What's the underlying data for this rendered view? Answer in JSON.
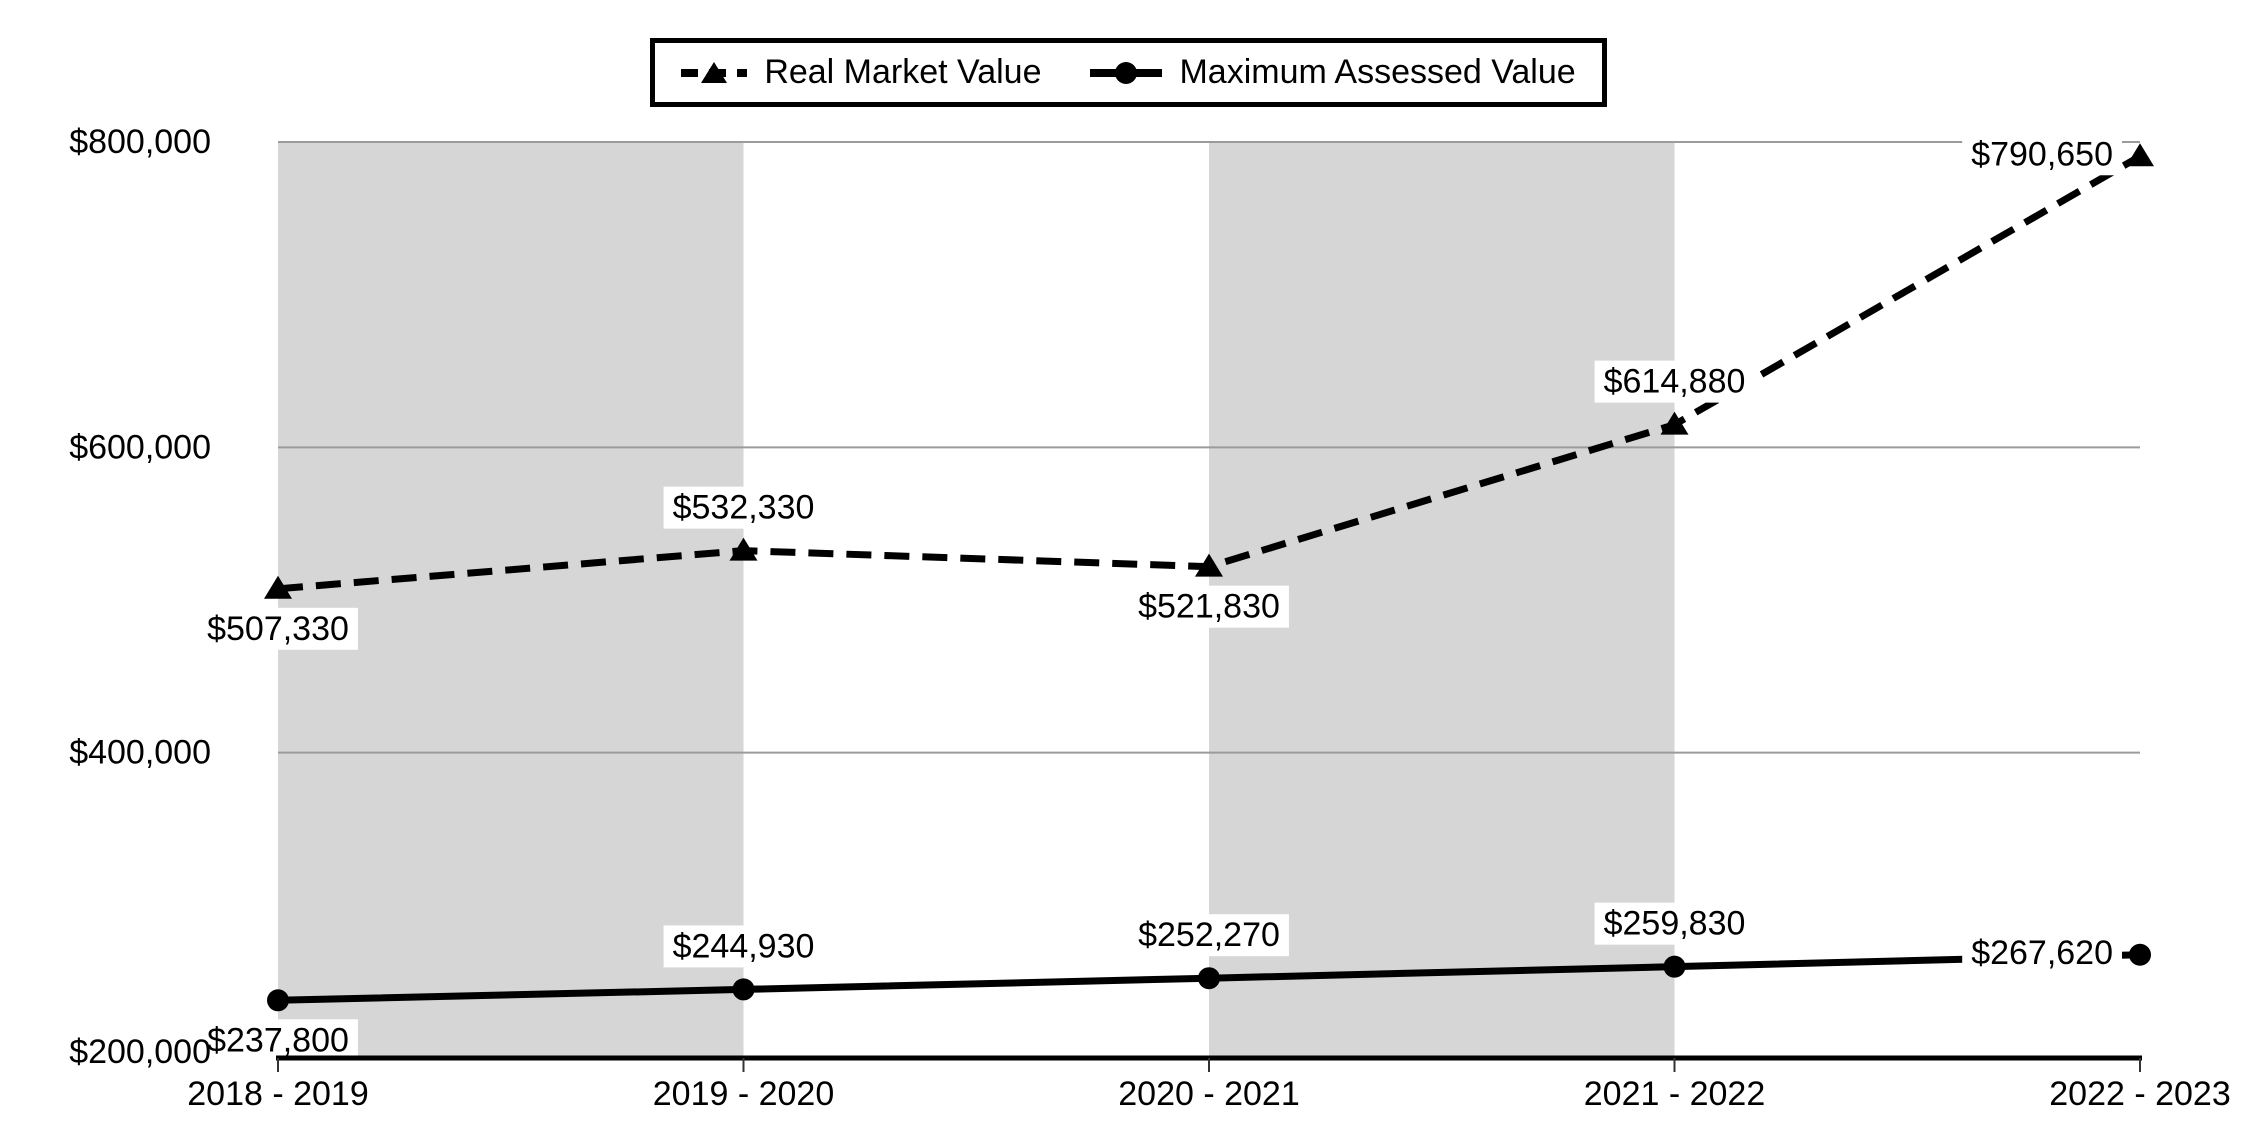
{
  "chart_data": {
    "type": "line",
    "categories": [
      "2018 - 2019",
      "2019 - 2020",
      "2020 - 2021",
      "2021 - 2022",
      "2022 - 2023"
    ],
    "series": [
      {
        "name": "Real Market Value",
        "values": [
          507330,
          532330,
          521830,
          614880,
          790650
        ],
        "data_labels": [
          "$507,330",
          "$532,330",
          "$521,830",
          "$614,880",
          "$790,650"
        ],
        "label_placement": [
          "below",
          "above",
          "below",
          "above",
          "left"
        ],
        "line_style": "dashed",
        "marker": "triangle"
      },
      {
        "name": "Maximum Assessed Value",
        "values": [
          237800,
          244930,
          252270,
          259830,
          267620
        ],
        "data_labels": [
          "$237,800",
          "$244,930",
          "$252,270",
          "$259,830",
          "$267,620"
        ],
        "label_placement": [
          "below",
          "above",
          "above",
          "above",
          "left"
        ],
        "line_style": "solid",
        "marker": "circle"
      }
    ],
    "title": "",
    "xlabel": "",
    "ylabel": "",
    "ylim": [
      200000,
      800000
    ],
    "yticks": [
      {
        "value": 200000,
        "label": "$200,000"
      },
      {
        "value": 400000,
        "label": "$400,000"
      },
      {
        "value": 600000,
        "label": "$600,000"
      },
      {
        "value": 800000,
        "label": "$800,000"
      }
    ],
    "grid": "horizontal",
    "legend_position": "top-center",
    "shaded_columns": [
      0,
      2
    ],
    "colors": {
      "series": "#000000",
      "gridline": "#9b9b9b",
      "axis": "#000000",
      "tick": "#333333",
      "band": "#d6d6d6",
      "background": "#ffffff",
      "label_background": "#ffffff",
      "text": "#000000"
    }
  }
}
